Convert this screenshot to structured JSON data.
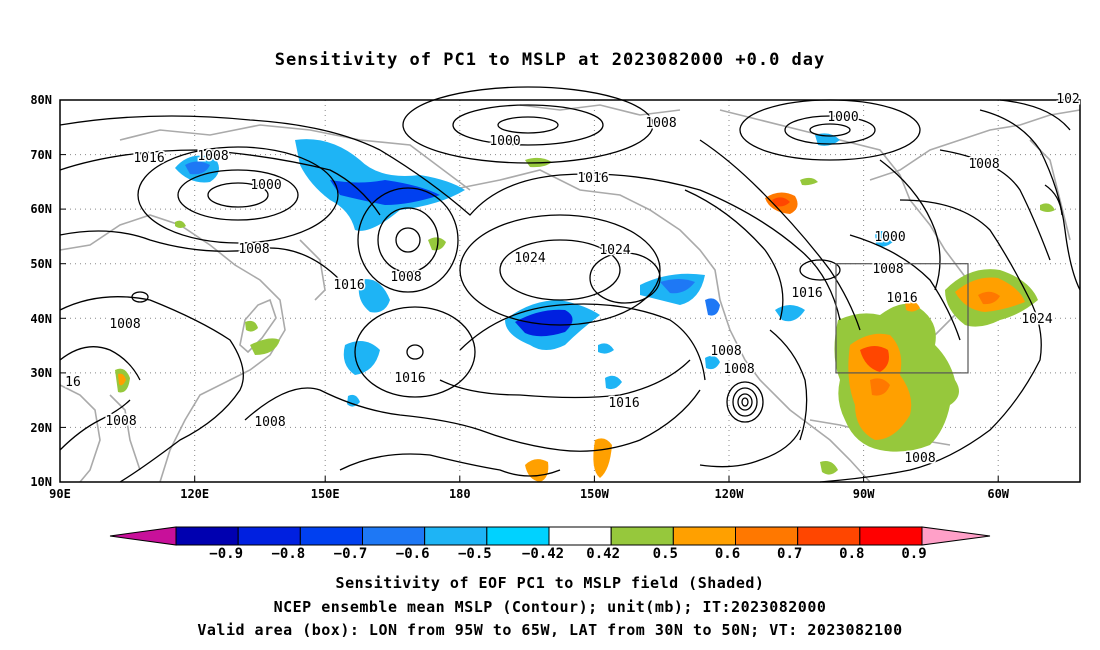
{
  "title": "Sensitivity of PC1 to MSLP at 2023082000 +0.0 day",
  "lat_labels": [
    "80N",
    "70N",
    "60N",
    "50N",
    "40N",
    "30N",
    "20N",
    "10N"
  ],
  "lon_labels": [
    "90E",
    "120E",
    "150E",
    "180",
    "150W",
    "120W",
    "90W",
    "60W"
  ],
  "colorbar": {
    "tick_labels": [
      "-0.9",
      "-0.8",
      "-0.7",
      "-0.6",
      "-0.5",
      "-0.42",
      "0.42",
      "0.5",
      "0.6",
      "0.7",
      "0.8",
      "0.9"
    ],
    "colors": [
      "#c8109a",
      "#0000b0",
      "#0020e0",
      "#0040f0",
      "#1e78f5",
      "#1eb4f5",
      "#00d2ff",
      "#ffffff",
      "#96c83c",
      "#ffa000",
      "#ff7800",
      "#ff4600",
      "#ff0000",
      "#ffa0c8"
    ]
  },
  "contour_labels": [
    {
      "text": "1000"
    },
    {
      "text": "1000"
    },
    {
      "text": "1000"
    },
    {
      "text": "1000"
    },
    {
      "text": "1008"
    },
    {
      "text": "1008"
    },
    {
      "text": "1008"
    },
    {
      "text": "1008"
    },
    {
      "text": "1008"
    },
    {
      "text": "1008"
    },
    {
      "text": "1008"
    },
    {
      "text": "1008"
    },
    {
      "text": "1008"
    },
    {
      "text": "1008"
    },
    {
      "text": "1008"
    },
    {
      "text": "1008"
    },
    {
      "text": "1016"
    },
    {
      "text": "1016"
    },
    {
      "text": "1016"
    },
    {
      "text": "1016"
    },
    {
      "text": "1016"
    },
    {
      "text": "1016"
    },
    {
      "text": "1016"
    },
    {
      "text": "16"
    },
    {
      "text": "102"
    },
    {
      "text": "1024"
    },
    {
      "text": "1024"
    },
    {
      "text": "1024"
    }
  ],
  "captions": [
    "Sensitivity of EOF PC1 to MSLP field (Shaded)",
    "NCEP ensemble mean MSLP (Contour); unit(mb); IT:2023082000",
    "Valid area (box): LON from 95W to 65W, LAT from 30N to 50N; VT: 2023082100"
  ]
}
